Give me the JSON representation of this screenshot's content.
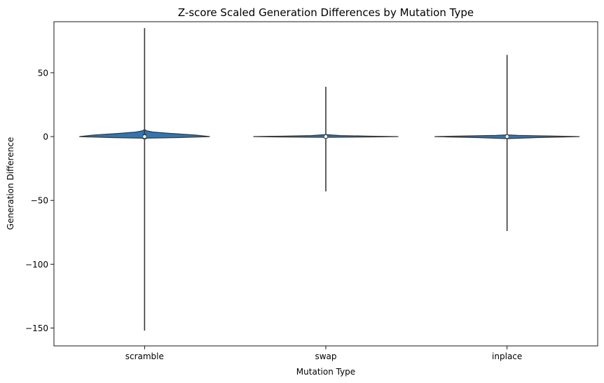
{
  "chart_data": {
    "type": "violin",
    "title": "Z-score Scaled Generation Differences by Mutation Type",
    "xlabel": "Mutation Type",
    "ylabel": "Generation Difference",
    "categories": [
      "scramble",
      "swap",
      "inplace"
    ],
    "ylim": [
      -164,
      90
    ],
    "yticks": [
      50,
      0,
      -50,
      -100,
      -150
    ],
    "ytick_labels": [
      "50",
      "0",
      "−50",
      "−100",
      "−150"
    ],
    "grid": false,
    "legend": "none",
    "violin_color": "#2f77b4",
    "edge_color": "#3a3a3a",
    "median_color": "#ffffff",
    "violins": [
      {
        "category": "scramble",
        "min": -152,
        "max": 85,
        "q1": -1,
        "median": 0,
        "q3": 1,
        "profile": [
          [
            -1.3,
            0.0
          ],
          [
            -0.8,
            0.45
          ],
          [
            0.0,
            0.9
          ],
          [
            1.2,
            0.7
          ],
          [
            2.5,
            0.35
          ],
          [
            3.5,
            0.12
          ],
          [
            4.5,
            0.03
          ],
          [
            5.5,
            0.0
          ]
        ],
        "whisker_low": -152,
        "whisker_high": 85
      },
      {
        "category": "swap",
        "min": -43,
        "max": 39,
        "q1": -0.5,
        "median": 0,
        "q3": 0.5,
        "profile": [
          [
            -0.6,
            0.0
          ],
          [
            -0.3,
            0.6
          ],
          [
            0.0,
            1.0
          ],
          [
            0.3,
            0.6
          ],
          [
            0.8,
            0.2
          ],
          [
            1.5,
            0.0
          ]
        ],
        "whisker_low": -43,
        "whisker_high": 39
      },
      {
        "category": "inplace",
        "min": -74,
        "max": 64,
        "q1": -0.5,
        "median": 0,
        "q3": 0.5,
        "profile": [
          [
            -1.6,
            0.0
          ],
          [
            -0.8,
            0.4
          ],
          [
            0.0,
            1.0
          ],
          [
            0.4,
            0.6
          ],
          [
            0.9,
            0.15
          ],
          [
            1.3,
            0.0
          ]
        ],
        "whisker_low": -74,
        "whisker_high": 64
      }
    ]
  }
}
